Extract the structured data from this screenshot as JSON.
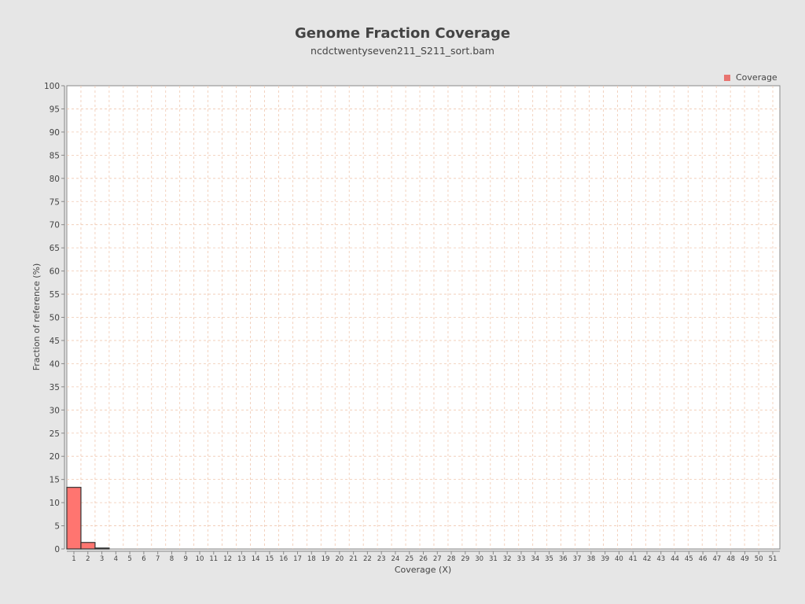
{
  "chart_data": {
    "type": "bar",
    "title": "Genome Fraction Coverage",
    "subtitle": "ncdctwentyseven211_S211_sort.bam",
    "xlabel": "Coverage (X)",
    "ylabel": "Fraction of reference (%)",
    "ylim": [
      0,
      100
    ],
    "y_ticks": [
      0,
      5,
      10,
      15,
      20,
      25,
      30,
      35,
      40,
      45,
      50,
      55,
      60,
      65,
      70,
      75,
      80,
      85,
      90,
      95,
      100
    ],
    "categories": [
      1,
      2,
      3,
      4,
      5,
      6,
      7,
      8,
      9,
      10,
      11,
      12,
      13,
      14,
      15,
      16,
      17,
      18,
      19,
      20,
      21,
      22,
      23,
      24,
      25,
      26,
      27,
      28,
      29,
      30,
      31,
      32,
      33,
      34,
      35,
      36,
      37,
      38,
      39,
      40,
      41,
      42,
      43,
      44,
      45,
      46,
      47,
      48,
      49,
      50,
      51
    ],
    "series": [
      {
        "name": "Coverage",
        "color": "#ff7570",
        "values": [
          13.3,
          1.4,
          0.2,
          0,
          0,
          0,
          0,
          0,
          0,
          0,
          0,
          0,
          0,
          0,
          0,
          0,
          0,
          0,
          0,
          0,
          0,
          0,
          0,
          0,
          0,
          0,
          0,
          0,
          0,
          0,
          0,
          0,
          0,
          0,
          0,
          0,
          0,
          0,
          0,
          0,
          0,
          0,
          0,
          0,
          0,
          0,
          0,
          0,
          0,
          0,
          0
        ]
      }
    ],
    "grid": true,
    "grid_color": "#f0c8b0",
    "legend_position": "top-right"
  }
}
